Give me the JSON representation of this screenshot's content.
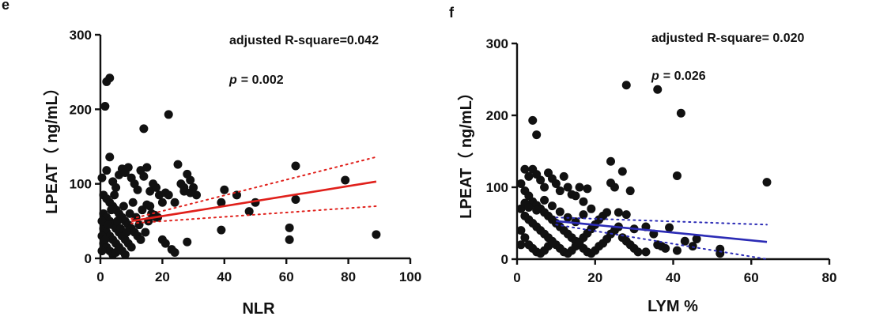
{
  "chart_data": [
    {
      "panel_label": "e",
      "type": "scatter",
      "xlabel": "NLR",
      "ylabel": "LPEAT（ ng/mL）",
      "xlim": [
        0,
        100
      ],
      "ylim": [
        0,
        300
      ],
      "x_ticks": [
        0,
        20,
        40,
        60,
        80,
        100
      ],
      "y_ticks": [
        0,
        100,
        200,
        300
      ],
      "annotations": {
        "r_square": "adjusted R-square=0.042",
        "p_symbol": "p",
        "p_value": "= 0.002"
      },
      "fit": {
        "color": "#e0201b",
        "x": [
          10,
          89
        ],
        "y": [
          50,
          103
        ]
      },
      "ci_upper": {
        "x": [
          10,
          89
        ],
        "y": [
          53,
          136
        ]
      },
      "ci_lower": {
        "x": [
          10,
          89
        ],
        "y": [
          47,
          70
        ]
      },
      "point_color": "#111111",
      "points": [
        [
          2,
          237
        ],
        [
          3,
          242
        ],
        [
          1.5,
          204
        ],
        [
          14,
          174
        ],
        [
          22,
          193
        ],
        [
          3,
          136
        ],
        [
          0.5,
          108
        ],
        [
          2,
          118
        ],
        [
          4,
          103
        ],
        [
          5,
          95
        ],
        [
          6,
          112
        ],
        [
          7,
          120
        ],
        [
          8,
          115
        ],
        [
          9,
          122
        ],
        [
          10,
          108
        ],
        [
          11,
          100
        ],
        [
          12,
          92
        ],
        [
          13,
          118
        ],
        [
          14,
          110
        ],
        [
          15,
          122
        ],
        [
          16,
          90
        ],
        [
          17,
          100
        ],
        [
          18,
          95
        ],
        [
          19,
          85
        ],
        [
          20,
          75
        ],
        [
          21,
          88
        ],
        [
          22,
          85
        ],
        [
          24,
          75
        ],
        [
          25,
          126
        ],
        [
          26,
          100
        ],
        [
          27,
          90
        ],
        [
          28,
          113
        ],
        [
          29,
          105
        ],
        [
          30,
          95
        ],
        [
          31,
          85
        ],
        [
          27,
          95
        ],
        [
          29,
          88
        ],
        [
          1,
          85
        ],
        [
          2,
          80
        ],
        [
          3,
          75
        ],
        [
          4,
          70
        ],
        [
          5,
          65
        ],
        [
          6,
          60
        ],
        [
          7,
          55
        ],
        [
          8,
          50
        ],
        [
          9,
          45
        ],
        [
          10,
          40
        ],
        [
          11,
          35
        ],
        [
          12,
          30
        ],
        [
          13,
          25
        ],
        [
          1,
          60
        ],
        [
          2,
          55
        ],
        [
          3,
          50
        ],
        [
          4,
          45
        ],
        [
          5,
          40
        ],
        [
          6,
          35
        ],
        [
          7,
          30
        ],
        [
          8,
          25
        ],
        [
          9,
          20
        ],
        [
          10,
          15
        ],
        [
          1,
          40
        ],
        [
          2,
          35
        ],
        [
          3,
          30
        ],
        [
          4,
          25
        ],
        [
          5,
          20
        ],
        [
          6,
          15
        ],
        [
          7,
          10
        ],
        [
          8,
          5
        ],
        [
          1,
          20
        ],
        [
          2,
          15
        ],
        [
          3,
          10
        ],
        [
          4,
          5
        ],
        [
          5,
          8
        ],
        [
          6,
          12
        ],
        [
          0.5,
          10
        ],
        [
          0.5,
          30
        ],
        [
          0.5,
          50
        ],
        [
          1.5,
          25
        ],
        [
          2.5,
          45
        ],
        [
          3.5,
          65
        ],
        [
          4.5,
          85
        ],
        [
          5.5,
          50
        ],
        [
          6.5,
          40
        ],
        [
          7.5,
          70
        ],
        [
          8.5,
          35
        ],
        [
          9.5,
          60
        ],
        [
          10.5,
          75
        ],
        [
          11.5,
          55
        ],
        [
          12.5,
          45
        ],
        [
          13.5,
          65
        ],
        [
          14.5,
          35
        ],
        [
          15.5,
          50
        ],
        [
          16.5,
          60
        ],
        [
          17.5,
          58
        ],
        [
          18.5,
          55
        ],
        [
          20,
          25
        ],
        [
          21,
          20
        ],
        [
          23,
          12
        ],
        [
          24,
          8
        ],
        [
          28,
          22
        ],
        [
          18,
          55
        ],
        [
          16,
          70
        ],
        [
          15,
          72
        ],
        [
          40,
          92
        ],
        [
          44,
          85
        ],
        [
          39,
          75
        ],
        [
          39,
          38
        ],
        [
          48,
          63
        ],
        [
          50,
          75
        ],
        [
          61,
          41
        ],
        [
          61,
          25
        ],
        [
          63,
          124
        ],
        [
          63,
          79
        ],
        [
          79,
          105
        ],
        [
          89,
          32
        ]
      ]
    },
    {
      "panel_label": "f",
      "type": "scatter",
      "xlabel": "LYM %",
      "ylabel": "LPEAT（ ng/mL）",
      "xlim": [
        0,
        80
      ],
      "ylim": [
        0,
        300
      ],
      "x_ticks": [
        0,
        20,
        40,
        60,
        80
      ],
      "y_ticks": [
        0,
        100,
        200,
        300
      ],
      "annotations": {
        "r_square": "adjusted R-square= 0.020",
        "p_symbol": "p",
        "p_value": "= 0.026"
      },
      "fit": {
        "color": "#2b2bb5",
        "x": [
          10,
          64
        ],
        "y": [
          53,
          24
        ]
      },
      "ci_upper": {
        "x": [
          10,
          64
        ],
        "y": [
          58,
          48
        ]
      },
      "ci_lower": {
        "x": [
          10,
          64
        ],
        "y": [
          48,
          0
        ]
      },
      "point_color": "#111111",
      "points": [
        [
          4,
          193
        ],
        [
          5,
          173
        ],
        [
          28,
          242
        ],
        [
          36,
          236
        ],
        [
          42,
          203
        ],
        [
          41,
          116
        ],
        [
          64,
          107
        ],
        [
          2,
          125
        ],
        [
          3,
          115
        ],
        [
          4,
          125
        ],
        [
          5,
          118
        ],
        [
          6,
          110
        ],
        [
          7,
          100
        ],
        [
          8,
          120
        ],
        [
          9,
          112
        ],
        [
          10,
          105
        ],
        [
          11,
          95
        ],
        [
          12,
          115
        ],
        [
          13,
          100
        ],
        [
          14,
          90
        ],
        [
          15,
          88
        ],
        [
          16,
          100
        ],
        [
          17,
          80
        ],
        [
          18,
          98
        ],
        [
          1,
          105
        ],
        [
          2,
          95
        ],
        [
          3,
          88
        ],
        [
          4,
          80
        ],
        [
          5,
          75
        ],
        [
          6,
          70
        ],
        [
          7,
          65
        ],
        [
          8,
          60
        ],
        [
          9,
          55
        ],
        [
          10,
          50
        ],
        [
          11,
          45
        ],
        [
          12,
          40
        ],
        [
          13,
          35
        ],
        [
          14,
          30
        ],
        [
          15,
          25
        ],
        [
          16,
          20
        ],
        [
          17,
          15
        ],
        [
          18,
          10
        ],
        [
          19,
          8
        ],
        [
          20,
          12
        ],
        [
          21,
          18
        ],
        [
          22,
          22
        ],
        [
          23,
          28
        ],
        [
          24,
          35
        ],
        [
          25,
          40
        ],
        [
          26,
          45
        ],
        [
          27,
          30
        ],
        [
          28,
          25
        ],
        [
          29,
          20
        ],
        [
          30,
          15
        ],
        [
          31,
          10
        ],
        [
          2,
          60
        ],
        [
          3,
          55
        ],
        [
          4,
          50
        ],
        [
          5,
          45
        ],
        [
          6,
          40
        ],
        [
          7,
          35
        ],
        [
          8,
          30
        ],
        [
          9,
          25
        ],
        [
          10,
          20
        ],
        [
          11,
          15
        ],
        [
          12,
          10
        ],
        [
          13,
          8
        ],
        [
          14,
          12
        ],
        [
          15,
          18
        ],
        [
          16,
          24
        ],
        [
          17,
          30
        ],
        [
          18,
          36
        ],
        [
          19,
          42
        ],
        [
          20,
          48
        ],
        [
          21,
          55
        ],
        [
          22,
          60
        ],
        [
          23,
          65
        ],
        [
          1,
          40
        ],
        [
          1,
          20
        ],
        [
          2,
          30
        ],
        [
          3,
          20
        ],
        [
          4,
          15
        ],
        [
          5,
          10
        ],
        [
          6,
          8
        ],
        [
          7,
          12
        ],
        [
          8,
          18
        ],
        [
          9,
          22
        ],
        [
          1,
          70
        ],
        [
          2,
          78
        ],
        [
          3,
          72
        ],
        [
          5,
          68
        ],
        [
          7,
          82
        ],
        [
          9,
          74
        ],
        [
          11,
          66
        ],
        [
          13,
          58
        ],
        [
          15,
          52
        ],
        [
          17,
          62
        ],
        [
          19,
          70
        ],
        [
          24,
          136
        ],
        [
          27,
          122
        ],
        [
          25,
          100
        ],
        [
          29,
          95
        ],
        [
          24,
          106
        ],
        [
          26,
          65
        ],
        [
          28,
          62
        ],
        [
          30,
          42
        ],
        [
          33,
          45
        ],
        [
          35,
          35
        ],
        [
          36,
          20
        ],
        [
          37,
          18
        ],
        [
          38,
          15
        ],
        [
          39,
          44
        ],
        [
          41,
          12
        ],
        [
          43,
          25
        ],
        [
          45,
          18
        ],
        [
          46,
          28
        ],
        [
          52,
          14
        ],
        [
          52,
          8
        ],
        [
          33,
          10
        ]
      ]
    }
  ]
}
